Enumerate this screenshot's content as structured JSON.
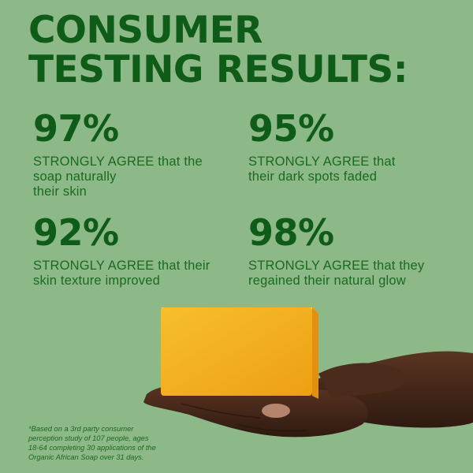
{
  "headline": {
    "line1": "CONSUMER",
    "line2": "TESTING RESULTS:"
  },
  "stats": [
    {
      "percent": "97%",
      "lines": [
        "STRONGLY AGREE that the",
        "soap naturally",
        "their skin"
      ]
    },
    {
      "percent": "95%",
      "lines": [
        "STRONGLY AGREE that",
        "their dark spots faded"
      ]
    },
    {
      "percent": "92%",
      "lines": [
        "STRONGLY AGREE that their",
        "skin texture improved"
      ]
    },
    {
      "percent": "98%",
      "lines": [
        "STRONGLY AGREE that they",
        "regained their natural glow"
      ]
    }
  ],
  "footnote": {
    "lines": [
      "*Based on a 3rd party consumer",
      "perception study of 107 people, ages",
      "18-64 completing 30 applications of the",
      "Organic African Soap over 31 days."
    ]
  },
  "colors": {
    "background": "#8db888",
    "text": "#0f5c18",
    "soap": "#f5b51f",
    "skin": "#4a2a1c"
  },
  "images": {
    "product": "yellow-soap-bar",
    "hand": "open-hand"
  }
}
